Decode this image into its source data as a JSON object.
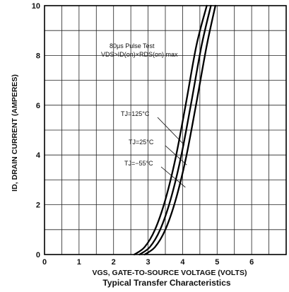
{
  "chart_data": {
    "type": "line",
    "title": "Typical Transfer Characteristics",
    "xlabel": "VGS, GATE-TO-SOURCE VOLTAGE (VOLTS)",
    "ylabel": "ID, DRAIN CURRENT (AMPERES)",
    "xlim": [
      0,
      7
    ],
    "ylim": [
      0,
      10
    ],
    "xticks": [
      "0",
      "1",
      "2",
      "3",
      "4",
      "5",
      "6"
    ],
    "yticks": [
      "0",
      "2",
      "4",
      "6",
      "8",
      "10"
    ],
    "grid": true,
    "annotation": {
      "line1": "80μs Pulse Test",
      "line2": "VDS>ID(on)×RDS(on) max"
    },
    "series": [
      {
        "name": "TJ=125°C",
        "x": [
          2.6,
          2.9,
          3.2,
          3.5,
          3.8,
          4.1,
          4.4,
          4.7
        ],
        "y": [
          0,
          0.3,
          1.0,
          2.2,
          3.9,
          6.1,
          8.4,
          10
        ]
      },
      {
        "name": "TJ=25°C",
        "x": [
          2.75,
          3.05,
          3.35,
          3.65,
          3.95,
          4.25,
          4.55,
          4.82
        ],
        "y": [
          0,
          0.3,
          1.0,
          2.2,
          3.9,
          6.1,
          8.4,
          10
        ]
      },
      {
        "name": "TJ=−55°C",
        "x": [
          2.9,
          3.2,
          3.5,
          3.8,
          4.1,
          4.4,
          4.7,
          4.95
        ],
        "y": [
          0,
          0.3,
          1.0,
          2.2,
          3.9,
          6.1,
          8.4,
          10
        ]
      }
    ]
  }
}
